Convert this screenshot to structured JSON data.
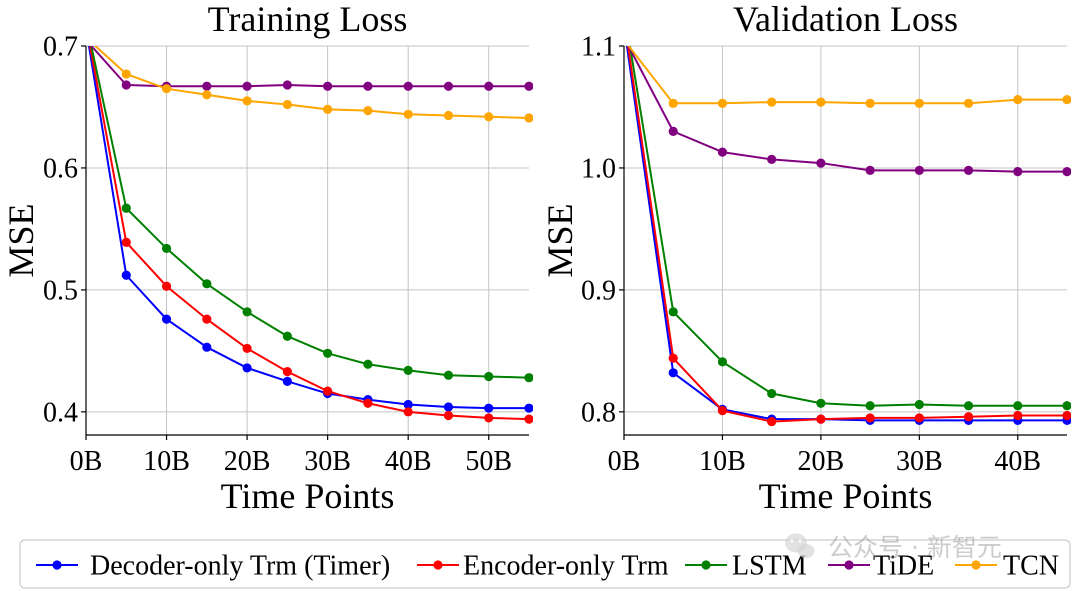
{
  "chart_data": [
    {
      "type": "line",
      "title": "Training Loss",
      "xlabel": "Time Points",
      "ylabel": "MSE",
      "x": [
        0,
        5,
        10,
        15,
        20,
        25,
        30,
        35,
        40,
        45,
        50,
        55
      ],
      "xlim": [
        0,
        55
      ],
      "ylim": [
        0.381,
        0.7
      ],
      "xticks": [
        0,
        10,
        20,
        30,
        40,
        50
      ],
      "xtick_labels": [
        "0B",
        "10B",
        "20B",
        "30B",
        "40B",
        "50B"
      ],
      "yticks": [
        0.4,
        0.5,
        0.6,
        0.7
      ],
      "ytick_labels": [
        "0.4",
        "0.5",
        "0.6",
        "0.7"
      ],
      "grid": true,
      "series": [
        {
          "name": "Decoder-only Trm (Timer)",
          "color": "#0000ff",
          "values": [
            0.715,
            0.512,
            0.476,
            0.453,
            0.436,
            0.425,
            0.415,
            0.41,
            0.406,
            0.404,
            0.403,
            0.403
          ]
        },
        {
          "name": "Encoder-only Trm",
          "color": "#ff0000",
          "values": [
            0.718,
            0.539,
            0.503,
            0.476,
            0.452,
            0.433,
            0.417,
            0.407,
            0.4,
            0.397,
            0.395,
            0.394
          ]
        },
        {
          "name": "LSTM",
          "color": "#008000",
          "values": [
            0.72,
            0.567,
            0.534,
            0.505,
            0.482,
            0.462,
            0.448,
            0.439,
            0.434,
            0.43,
            0.429,
            0.428
          ]
        },
        {
          "name": "TiDE",
          "color": "#800080",
          "values": [
            0.705,
            0.668,
            0.667,
            0.667,
            0.667,
            0.668,
            0.667,
            0.667,
            0.667,
            0.667,
            0.667,
            0.667
          ]
        },
        {
          "name": "TCN",
          "color": "#ffa500",
          "values": [
            0.707,
            0.677,
            0.665,
            0.66,
            0.655,
            0.652,
            0.648,
            0.647,
            0.644,
            0.643,
            0.642,
            0.641
          ]
        }
      ]
    },
    {
      "type": "line",
      "title": "Validation Loss",
      "xlabel": "Time Points",
      "ylabel": "MSE",
      "x": [
        0,
        5,
        10,
        15,
        20,
        25,
        30,
        35,
        40,
        45
      ],
      "xlim": [
        0,
        45
      ],
      "ylim": [
        0.781,
        1.1
      ],
      "xticks": [
        0,
        10,
        20,
        30,
        40
      ],
      "xtick_labels": [
        "0B",
        "10B",
        "20B",
        "30B",
        "40B"
      ],
      "yticks": [
        0.8,
        0.9,
        1.0,
        1.1
      ],
      "ytick_labels": [
        "0.8",
        "0.9",
        "1.0",
        "1.1"
      ],
      "grid": true,
      "series": [
        {
          "name": "Decoder-only Trm (Timer)",
          "color": "#0000ff",
          "values": [
            1.117,
            0.832,
            0.802,
            0.794,
            0.794,
            0.793,
            0.793,
            0.793,
            0.793,
            0.793
          ]
        },
        {
          "name": "Encoder-only Trm",
          "color": "#ff0000",
          "values": [
            1.123,
            0.844,
            0.801,
            0.792,
            0.794,
            0.795,
            0.795,
            0.796,
            0.797,
            0.797
          ]
        },
        {
          "name": "LSTM",
          "color": "#008000",
          "values": [
            1.13,
            0.882,
            0.841,
            0.815,
            0.807,
            0.805,
            0.806,
            0.805,
            0.805,
            0.805
          ]
        },
        {
          "name": "TiDE",
          "color": "#800080",
          "values": [
            1.107,
            1.03,
            1.013,
            1.007,
            1.004,
            0.998,
            0.998,
            0.998,
            0.997,
            0.997
          ]
        },
        {
          "name": "TCN",
          "color": "#ffa500",
          "values": [
            1.105,
            1.053,
            1.053,
            1.054,
            1.054,
            1.053,
            1.053,
            1.053,
            1.056,
            1.056
          ]
        }
      ]
    }
  ],
  "legend": {
    "placement": "bottom"
  },
  "watermark": "公众号 · 新智元"
}
